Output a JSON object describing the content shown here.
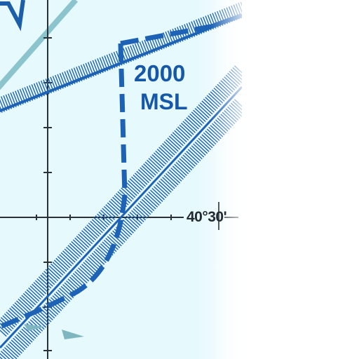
{
  "map": {
    "airspace_floor": {
      "value": "2000",
      "unit": "MSL"
    },
    "latitude_label": "40°30'",
    "colors": {
      "water_tint": "#e6f9fd",
      "airspace_blue": "#1d62b4",
      "grid_line": "#2a3038",
      "route_teal": "#88c2cc"
    }
  }
}
